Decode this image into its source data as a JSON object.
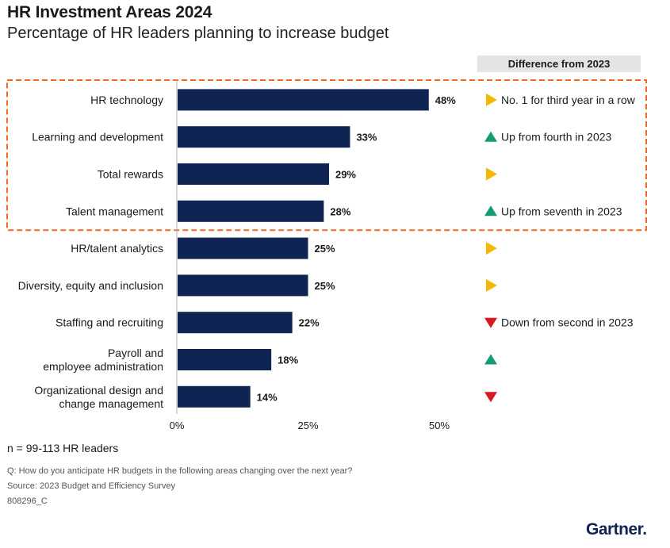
{
  "header": {
    "title": "HR Investment Areas 2024",
    "subtitle": "Percentage of HR leaders planning to increase budget",
    "diff_label": "Difference from 2023"
  },
  "colors": {
    "bar": "#0f2453",
    "highlight": "#f26a21",
    "same": "#f5b800",
    "up": "#169c74",
    "down": "#d71920"
  },
  "chart_data": {
    "type": "bar",
    "orientation": "horizontal",
    "categories": [
      [
        "HR technology"
      ],
      [
        "Learning and development"
      ],
      [
        "Total rewards"
      ],
      [
        "Talent management"
      ],
      [
        "HR/talent analytics"
      ],
      [
        "Diversity, equity and inclusion"
      ],
      [
        "Staffing and recruiting"
      ],
      [
        "Payroll and",
        "employee administration"
      ],
      [
        "Organizational design and",
        "change management"
      ]
    ],
    "values": [
      48,
      33,
      29,
      28,
      25,
      25,
      22,
      18,
      14
    ],
    "value_labels": [
      "48%",
      "33%",
      "29%",
      "28%",
      "25%",
      "25%",
      "22%",
      "18%",
      "14%"
    ],
    "xlim": [
      0,
      50
    ],
    "xticks": [
      0,
      25,
      50
    ],
    "xtick_labels": [
      "0%",
      "25%",
      "50%"
    ],
    "highlighted_categories": 4,
    "difference_from_2023": [
      {
        "icon": "same",
        "text": "No. 1 for third year in a row"
      },
      {
        "icon": "up",
        "text": "Up from fourth in 2023"
      },
      {
        "icon": "same",
        "text": ""
      },
      {
        "icon": "up",
        "text": "Up from seventh in 2023"
      },
      {
        "icon": "same",
        "text": ""
      },
      {
        "icon": "same",
        "text": ""
      },
      {
        "icon": "down",
        "text": "Down from second in 2023"
      },
      {
        "icon": "up",
        "text": ""
      },
      {
        "icon": "down",
        "text": ""
      }
    ]
  },
  "footer": {
    "n_note": "n = 99-113 HR leaders",
    "question": "Q: How do you anticipate HR budgets in the following areas changing over the next year?",
    "source": "Source: 2023 Budget and Efficiency Survey",
    "id": "808296_C",
    "brand": "Gartner."
  }
}
